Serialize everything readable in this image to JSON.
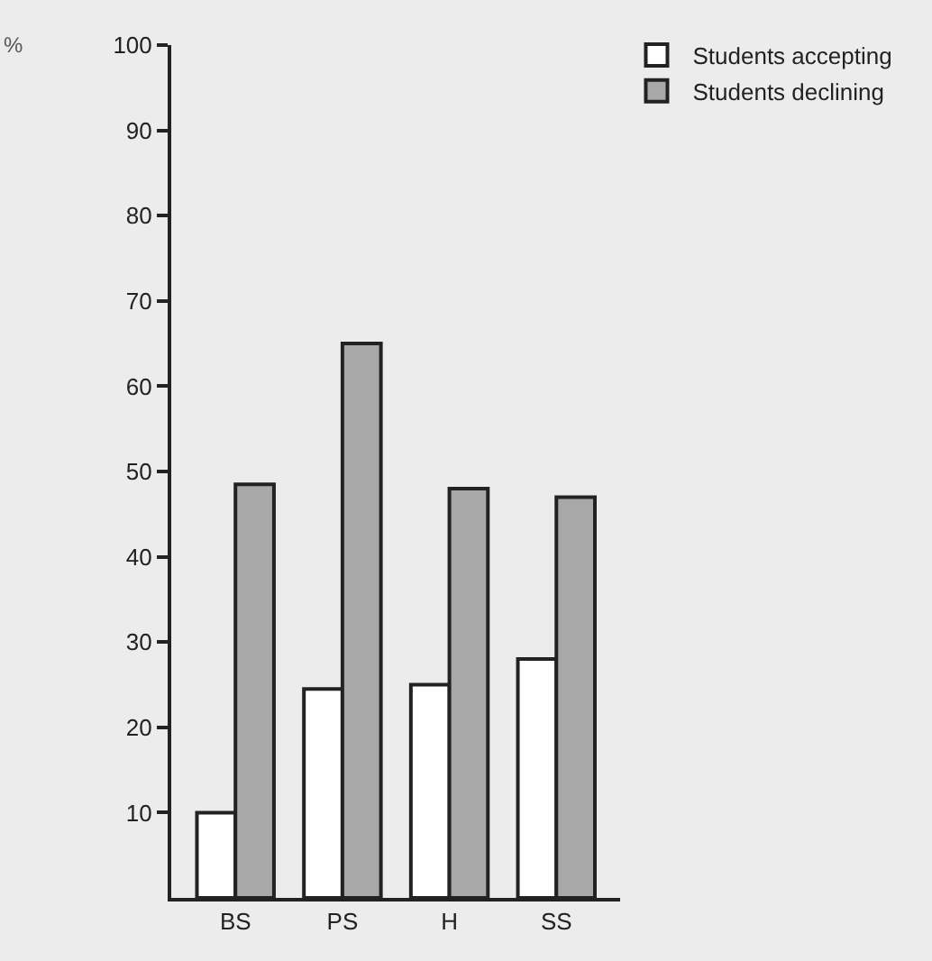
{
  "chart_data": {
    "type": "bar",
    "ylabel": "%",
    "categories": [
      "BS",
      "PS",
      "H",
      "SS"
    ],
    "series": [
      {
        "name": "Students accepting",
        "color": "#ffffff",
        "values": [
          10,
          24.5,
          25,
          28
        ]
      },
      {
        "name": "Students declining",
        "color": "#a8a8a8",
        "values": [
          48.5,
          65,
          48,
          47
        ]
      }
    ],
    "ylim": [
      0,
      100
    ],
    "yticks": [
      10,
      20,
      30,
      40,
      50,
      60,
      70,
      80,
      90,
      100
    ],
    "grid": false,
    "legend": "top right"
  }
}
